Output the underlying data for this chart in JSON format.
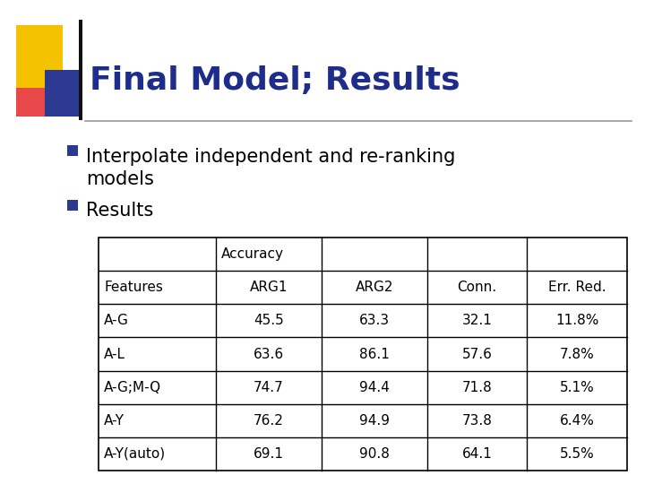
{
  "title": "Final Model; Results",
  "title_color": "#1F2D8A",
  "background_color": "#FFFFFF",
  "bullet1_line1": "Interpolate independent and re-ranking",
  "bullet1_line2": "models",
  "bullet2": "Results",
  "bullet_color": "#000000",
  "bullet_marker_color": "#2B3990",
  "table_headers_row1_label": "Accuracy",
  "table_headers_row2": [
    "Features",
    "ARG1",
    "ARG2",
    "Conn.",
    "Err. Red."
  ],
  "table_rows": [
    [
      "A-G",
      "45.5",
      "63.3",
      "32.1",
      "11.8%"
    ],
    [
      "A-L",
      "63.6",
      "86.1",
      "57.6",
      "7.8%"
    ],
    [
      "A-G;M-Q",
      "74.7",
      "94.4",
      "71.8",
      "5.1%"
    ],
    [
      "A-Y",
      "76.2",
      "94.9",
      "73.8",
      "6.4%"
    ],
    [
      "A-Y(auto)",
      "69.1",
      "90.8",
      "64.1",
      "5.5%"
    ]
  ],
  "deco_yellow": "#F5C200",
  "deco_red": "#E8484A",
  "deco_blue": "#2B3990",
  "line_color": "#999999",
  "table_font_size": 11,
  "bullet_font_size": 15,
  "title_font_size": 26
}
